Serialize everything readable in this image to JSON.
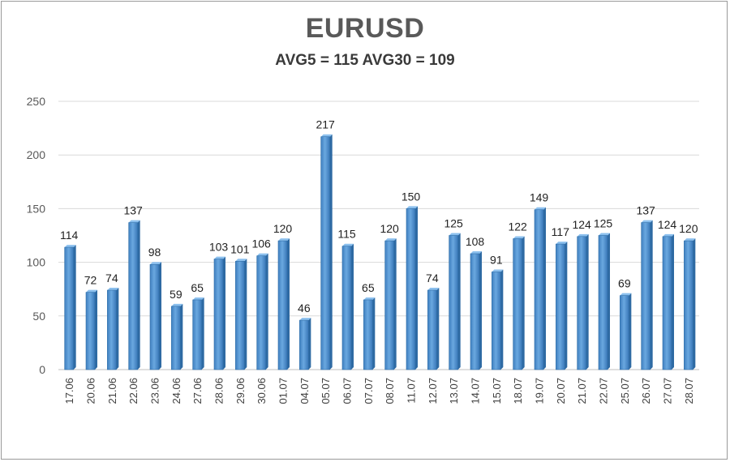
{
  "chart_data": {
    "type": "bar",
    "title": "EURUSD",
    "subtitle": "AVG5 = 115 AVG30 = 109",
    "xlabel": "",
    "ylabel": "",
    "ylim": [
      0,
      250
    ],
    "yticks": [
      0,
      50,
      100,
      150,
      200,
      250
    ],
    "grid": true,
    "legend": "none",
    "bar_color": "#5b9bd5",
    "categories": [
      "17.06",
      "20.06",
      "21.06",
      "22.06",
      "23.06",
      "24.06",
      "27.06",
      "28.06",
      "29.06",
      "30.06",
      "01.07",
      "04.07",
      "05.07",
      "06.07",
      "07.07",
      "08.07",
      "11.07",
      "12.07",
      "13.07",
      "14.07",
      "15.07",
      "18.07",
      "19.07",
      "20.07",
      "21.07",
      "22.07",
      "25.07",
      "26.07",
      "27.07",
      "28.07"
    ],
    "values": [
      114,
      72,
      74,
      137,
      98,
      59,
      65,
      103,
      101,
      106,
      120,
      46,
      217,
      115,
      65,
      120,
      150,
      74,
      125,
      108,
      91,
      122,
      149,
      117,
      124,
      125,
      69,
      137,
      124,
      120
    ]
  }
}
